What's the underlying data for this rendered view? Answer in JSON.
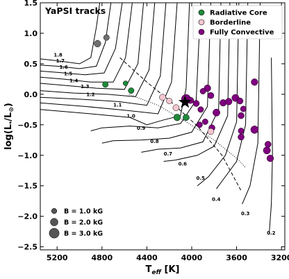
{
  "chart_data": {
    "type": "scatter",
    "title": "YaPSI tracks",
    "xlabel_main": "T",
    "xlabel_sub": "eff",
    "xlabel_unit": " [K]",
    "ylabel_prefix": "log(L",
    "ylabel_sub": "*",
    "ylabel_mid": "/L",
    "ylabel_sun": "⊙",
    "ylabel_suffix": ")",
    "xlim": [
      5350,
      3170
    ],
    "ylim": [
      -2.55,
      1.5
    ],
    "x_ticks": [
      5200,
      4800,
      4400,
      4000,
      3600,
      3200
    ],
    "x_tick_labels": [
      "5200",
      "4800",
      "4400",
      "4000",
      "3600",
      "3200"
    ],
    "y_ticks": [
      1.5,
      1.0,
      0.5,
      0.0,
      -0.5,
      -1.0,
      -1.5,
      -2.0,
      -2.5
    ],
    "y_tick_labels": [
      "1.5",
      "1.0",
      "0.5",
      "0.0",
      "−0.5",
      "−1.0",
      "−1.5",
      "−2.0",
      "−2.5"
    ],
    "colors": {
      "radiative": "#1e8a3a",
      "borderline": "#f4c6d0",
      "convective": "#800080",
      "gray": "#707070"
    },
    "legend": {
      "placement": "top-right",
      "entries": [
        {
          "key": "radiative",
          "label": "Radiative Core"
        },
        {
          "key": "borderline",
          "label": "Borderline"
        },
        {
          "key": "convective",
          "label": "Fully Convective"
        }
      ]
    },
    "size_legend": {
      "placement": "bottom-left",
      "entries": [
        {
          "label": "B = 1.0 kG",
          "b_kg": 1.0
        },
        {
          "label": "B = 2.0 kG",
          "b_kg": 2.0
        },
        {
          "label": "B = 3.0 kG",
          "b_kg": 3.0
        }
      ]
    },
    "tracks": [
      {
        "label": "1.8",
        "points": [
          [
            5350,
            0.58
          ],
          [
            5200,
            0.55
          ],
          [
            5000,
            0.5
          ],
          [
            4900,
            0.6
          ],
          [
            4850,
            1.1
          ],
          [
            4820,
            1.5
          ]
        ],
        "label_at": [
          5230,
          0.62
        ]
      },
      {
        "label": "1.7",
        "points": [
          [
            5350,
            0.48
          ],
          [
            5200,
            0.46
          ],
          [
            5000,
            0.42
          ],
          [
            4850,
            0.46
          ],
          [
            4770,
            0.85
          ],
          [
            4720,
            1.5
          ]
        ],
        "label_at": [
          5210,
          0.52
        ]
      },
      {
        "label": "1.6",
        "points": [
          [
            5350,
            0.38
          ],
          [
            5200,
            0.36
          ],
          [
            4950,
            0.32
          ],
          [
            4780,
            0.35
          ],
          [
            4680,
            0.75
          ],
          [
            4620,
            1.5
          ]
        ],
        "label_at": [
          5180,
          0.42
        ]
      },
      {
        "label": "1.5",
        "points": [
          [
            5350,
            0.28
          ],
          [
            5150,
            0.25
          ],
          [
            4900,
            0.2
          ],
          [
            4700,
            0.2
          ],
          [
            4590,
            0.6
          ],
          [
            4530,
            1.5
          ]
        ],
        "label_at": [
          5140,
          0.31
        ]
      },
      {
        "label": "1.4",
        "points": [
          [
            5350,
            0.18
          ],
          [
            5100,
            0.14
          ],
          [
            4850,
            0.1
          ],
          [
            4600,
            0.08
          ],
          [
            4480,
            0.5
          ],
          [
            4430,
            1.5
          ]
        ],
        "label_at": [
          5090,
          0.2
        ]
      },
      {
        "label": "1.3",
        "points": [
          [
            5350,
            0.06
          ],
          [
            5050,
            0.02
          ],
          [
            4750,
            0.0
          ],
          [
            4500,
            -0.04
          ],
          [
            4380,
            0.4
          ],
          [
            4330,
            1.5
          ]
        ],
        "label_at": [
          4990,
          0.1
        ]
      },
      {
        "label": "1.2",
        "points": [
          [
            5350,
            -0.05
          ],
          [
            5000,
            -0.08
          ],
          [
            4650,
            -0.12
          ],
          [
            4400,
            -0.18
          ],
          [
            4280,
            0.3
          ],
          [
            4230,
            1.5
          ]
        ],
        "label_at": [
          4940,
          -0.03
        ]
      },
      {
        "label": "1.1",
        "points": [
          [
            5350,
            -0.14
          ],
          [
            4950,
            -0.2
          ],
          [
            4600,
            -0.26
          ],
          [
            4300,
            -0.32
          ],
          [
            4180,
            0.2
          ],
          [
            4130,
            1.5
          ]
        ],
        "label_at": [
          4700,
          -0.2
        ]
      },
      {
        "label": "1.0",
        "points": [
          [
            5350,
            -0.25
          ],
          [
            4900,
            -0.32
          ],
          [
            4550,
            -0.38
          ],
          [
            4400,
            -0.5
          ],
          [
            4250,
            -0.42
          ],
          [
            4100,
            -0.35
          ],
          [
            4050,
            0.1
          ],
          [
            4020,
            1.5
          ]
        ],
        "label_at": [
          4580,
          -0.38
        ]
      },
      {
        "label": "0.9",
        "points": [
          [
            4900,
            -0.6
          ],
          [
            4800,
            -0.55
          ],
          [
            4550,
            -0.52
          ],
          [
            4300,
            -0.55
          ],
          [
            4100,
            -0.48
          ],
          [
            3960,
            -0.1
          ],
          [
            3920,
            1.5
          ]
        ],
        "label_at": [
          4490,
          -0.58
        ]
      },
      {
        "label": "0.8",
        "points": [
          [
            4800,
            -0.8
          ],
          [
            4700,
            -0.76
          ],
          [
            4450,
            -0.75
          ],
          [
            4200,
            -0.72
          ],
          [
            4000,
            -0.62
          ],
          [
            3860,
            -0.2
          ],
          [
            3830,
            1.5
          ]
        ],
        "label_at": [
          4370,
          -0.8
        ]
      },
      {
        "label": "0.7",
        "points": [
          [
            4450,
            -0.95
          ],
          [
            4300,
            -0.9
          ],
          [
            4100,
            -0.88
          ],
          [
            3900,
            -0.78
          ],
          [
            3760,
            -0.25
          ],
          [
            3740,
            1.5
          ]
        ],
        "label_at": [
          4250,
          -1.0
        ]
      },
      {
        "label": "0.6",
        "points": [
          [
            4250,
            -1.1
          ],
          [
            4150,
            -1.08
          ],
          [
            3950,
            -1.0
          ],
          [
            3800,
            -0.85
          ],
          [
            3680,
            -0.35
          ],
          [
            3660,
            1.5
          ]
        ],
        "label_at": [
          4120,
          -1.17
        ]
      },
      {
        "label": "0.5",
        "points": [
          [
            3950,
            -1.5
          ],
          [
            3850,
            -1.35
          ],
          [
            3700,
            -1.0
          ],
          [
            3600,
            -0.45
          ],
          [
            3580,
            1.5
          ]
        ],
        "label_at": [
          3960,
          -1.4
        ]
      },
      {
        "label": "0.4",
        "points": [
          [
            3780,
            -1.55
          ],
          [
            3700,
            -1.35
          ],
          [
            3600,
            -1.1
          ],
          [
            3520,
            -0.5
          ],
          [
            3500,
            1.5
          ]
        ],
        "label_at": [
          3820,
          -1.75
        ]
      },
      {
        "label": "0.3",
        "points": [
          [
            3550,
            -1.8
          ],
          [
            3480,
            -1.5
          ],
          [
            3410,
            -0.8
          ],
          [
            3390,
            1.5
          ]
        ],
        "label_at": [
          3560,
          -1.98
        ]
      },
      {
        "label": "0.2",
        "points": [
          [
            3310,
            -2.3
          ],
          [
            3290,
            -1.8
          ],
          [
            3280,
            -1.0
          ],
          [
            3290,
            0.6
          ]
        ],
        "label_at": [
          3330,
          -2.3
        ]
      }
    ],
    "dashed_line": [
      [
        4640,
        0.6
      ],
      [
        4400,
        0.2
      ],
      [
        4200,
        -0.1
      ],
      [
        3950,
        -0.52
      ],
      [
        3730,
        -1.0
      ],
      [
        3560,
        -1.58
      ]
    ],
    "dotted_line": [
      [
        4560,
        0.0
      ],
      [
        4300,
        -0.18
      ],
      [
        4050,
        -0.45
      ],
      [
        3800,
        -0.75
      ],
      [
        3600,
        -1.05
      ],
      [
        3520,
        -1.2
      ]
    ],
    "points": [
      {
        "x": 4840,
        "y": 0.83,
        "class": "gray",
        "b_kg": 1.6
      },
      {
        "x": 4760,
        "y": 0.93,
        "class": "gray",
        "b_kg": 1.2
      },
      {
        "x": 4770,
        "y": 0.16,
        "class": "radiative",
        "b_kg": 1.2
      },
      {
        "x": 4590,
        "y": 0.18,
        "class": "radiative",
        "b_kg": 0.8
      },
      {
        "x": 4540,
        "y": 0.06,
        "class": "radiative",
        "b_kg": 1.2
      },
      {
        "x": 4260,
        "y": -0.05,
        "class": "borderline",
        "b_kg": 1.4
      },
      {
        "x": 4200,
        "y": -0.11,
        "class": "borderline",
        "b_kg": 1.2
      },
      {
        "x": 4140,
        "y": -0.22,
        "class": "borderline",
        "b_kg": 1.4
      },
      {
        "x": 4060,
        "y": -0.1,
        "class": "borderline",
        "b_kg": 1.6
      },
      {
        "x": 4050,
        "y": -0.08,
        "class": "convective",
        "b_kg": 2.8
      },
      {
        "x": 4010,
        "y": -0.1,
        "class": "convective",
        "b_kg": 1.4
      },
      {
        "x": 3960,
        "y": -0.15,
        "class": "convective",
        "b_kg": 1.4
      },
      {
        "x": 3920,
        "y": -0.25,
        "class": "convective",
        "b_kg": 1.2
      },
      {
        "x": 4130,
        "y": -0.38,
        "class": "radiative",
        "b_kg": 1.6
      },
      {
        "x": 4050,
        "y": -0.38,
        "class": "radiative",
        "b_kg": 1.4
      },
      {
        "x": 3930,
        "y": -0.5,
        "class": "convective",
        "b_kg": 1.2
      },
      {
        "x": 3880,
        "y": -0.45,
        "class": "convective",
        "b_kg": 1.2
      },
      {
        "x": 3820,
        "y": -0.55,
        "class": "convective",
        "b_kg": 1.4
      },
      {
        "x": 3830,
        "y": -0.61,
        "class": "borderline",
        "b_kg": 1.4
      },
      {
        "x": 3780,
        "y": -0.3,
        "class": "convective",
        "b_kg": 1.8
      },
      {
        "x": 3860,
        "y": 0.1,
        "class": "convective",
        "b_kg": 1.6
      },
      {
        "x": 3830,
        "y": -0.02,
        "class": "convective",
        "b_kg": 1.4
      },
      {
        "x": 3900,
        "y": 0.05,
        "class": "convective",
        "b_kg": 1.2
      },
      {
        "x": 3720,
        "y": -0.14,
        "class": "convective",
        "b_kg": 1.6
      },
      {
        "x": 3670,
        "y": -0.12,
        "class": "convective",
        "b_kg": 1.6
      },
      {
        "x": 3610,
        "y": -0.06,
        "class": "convective",
        "b_kg": 1.8
      },
      {
        "x": 3570,
        "y": -0.11,
        "class": "convective",
        "b_kg": 1.4
      },
      {
        "x": 3540,
        "y": -0.24,
        "class": "convective",
        "b_kg": 1.2
      },
      {
        "x": 3560,
        "y": -0.35,
        "class": "convective",
        "b_kg": 1.4
      },
      {
        "x": 3560,
        "y": -0.6,
        "class": "convective",
        "b_kg": 1.2
      },
      {
        "x": 3560,
        "y": -0.7,
        "class": "convective",
        "b_kg": 1.4
      },
      {
        "x": 3440,
        "y": -0.58,
        "class": "convective",
        "b_kg": 2.0
      },
      {
        "x": 3440,
        "y": 0.2,
        "class": "convective",
        "b_kg": 1.6
      },
      {
        "x": 3330,
        "y": -0.92,
        "class": "convective",
        "b_kg": 1.8
      },
      {
        "x": 3320,
        "y": -0.82,
        "class": "convective",
        "b_kg": 1.4
      },
      {
        "x": 3300,
        "y": -1.05,
        "class": "convective",
        "b_kg": 1.6
      }
    ],
    "star_marker": {
      "x": 4060,
      "y": -0.13
    }
  }
}
